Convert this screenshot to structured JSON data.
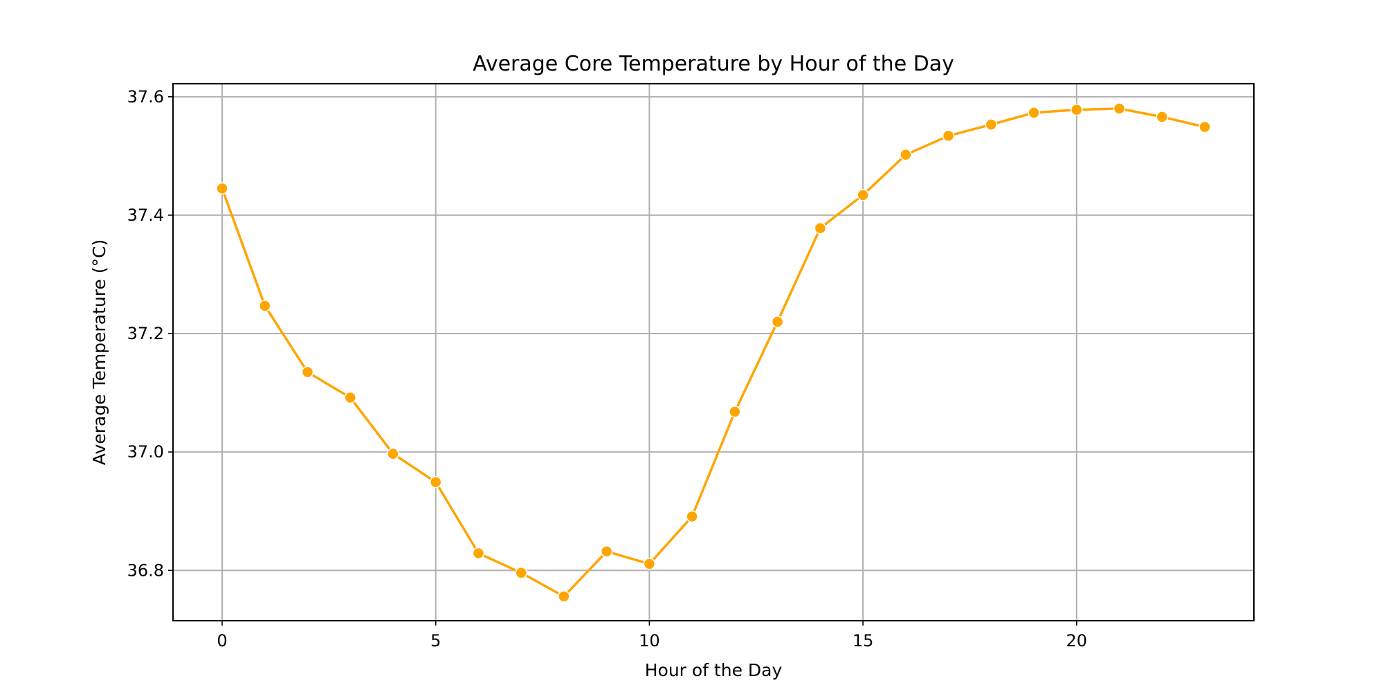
{
  "chart_data": {
    "type": "line",
    "title": "Average Core Temperature by Hour of the Day",
    "xlabel": "Hour of the Day",
    "ylabel": "Average Temperature (°C)",
    "xlim": [
      -1.15,
      24.15
    ],
    "ylim": [
      36.715,
      37.622
    ],
    "xticks": [
      0,
      5,
      10,
      15,
      20
    ],
    "xtick_labels": [
      "0",
      "5",
      "10",
      "15",
      "20"
    ],
    "yticks": [
      36.8,
      37.0,
      37.2,
      37.4,
      37.6
    ],
    "ytick_labels": [
      "36.8",
      "37.0",
      "37.2",
      "37.4",
      "37.6"
    ],
    "grid": true,
    "legend": "none",
    "colors": {
      "series": "#FFA500",
      "grid": "#b0b0b0",
      "axes": "#000000"
    },
    "series": [
      {
        "x": [
          0,
          1,
          2,
          3,
          4,
          5,
          6,
          7,
          8,
          9,
          10,
          11,
          12,
          13,
          14,
          15,
          16,
          17,
          18,
          19,
          20,
          21,
          22,
          23
        ],
        "values": [
          37.445,
          37.247,
          37.135,
          37.092,
          36.997,
          36.949,
          36.829,
          36.796,
          36.756,
          36.832,
          36.811,
          36.891,
          37.068,
          37.22,
          37.378,
          37.434,
          37.502,
          37.534,
          37.553,
          37.573,
          37.578,
          37.58,
          37.566,
          37.549
        ],
        "marker": "circle"
      }
    ]
  }
}
